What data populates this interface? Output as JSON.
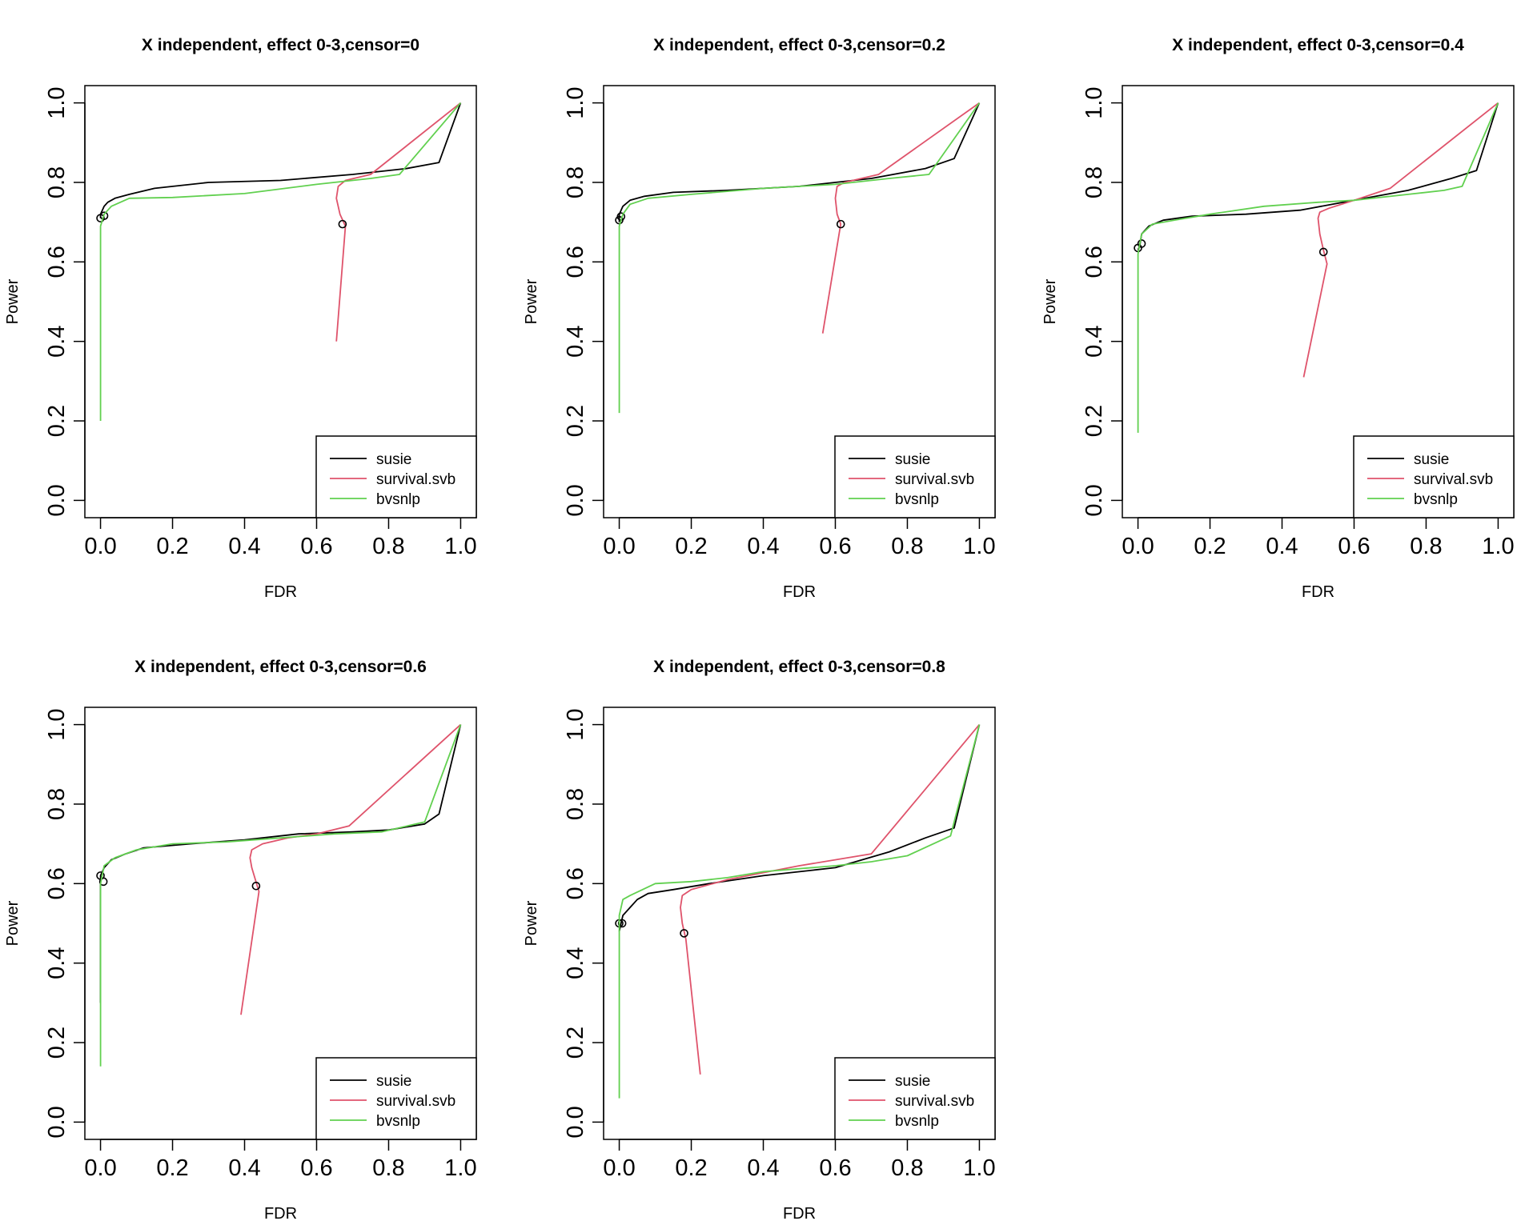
{
  "chart_data": [
    {
      "type": "line",
      "title": "X independent, effect 0-3,censor=0",
      "xlabel": "FDR",
      "ylabel": "Power",
      "xlim": [
        0,
        1
      ],
      "ylim": [
        0,
        1
      ],
      "xticks": [
        "0.0",
        "0.2",
        "0.4",
        "0.6",
        "0.8",
        "1.0"
      ],
      "yticks": [
        "0.0",
        "0.2",
        "0.4",
        "0.6",
        "0.8",
        "1.0"
      ],
      "legend": {
        "position": "bottom-right",
        "entries": [
          "susie",
          "survival.svb",
          "bvsnlp"
        ]
      },
      "series": [
        {
          "name": "susie",
          "color": "#000000",
          "points": [
            [
              0.0,
              0.71
            ],
            [
              0.0,
              0.72
            ],
            [
              0.01,
              0.74
            ],
            [
              0.02,
              0.75
            ],
            [
              0.04,
              0.76
            ],
            [
              0.08,
              0.77
            ],
            [
              0.15,
              0.785
            ],
            [
              0.3,
              0.8
            ],
            [
              0.5,
              0.805
            ],
            [
              0.7,
              0.82
            ],
            [
              0.85,
              0.835
            ],
            [
              0.94,
              0.85
            ],
            [
              1.0,
              1.0
            ]
          ],
          "markers": [
            [
              0.0,
              0.71
            ],
            [
              0.01,
              0.716
            ]
          ]
        },
        {
          "name": "survival.svb",
          "color": "#DF536B",
          "points": [
            [
              0.655,
              0.4
            ],
            [
              0.68,
              0.69
            ],
            [
              0.665,
              0.72
            ],
            [
              0.655,
              0.76
            ],
            [
              0.66,
              0.79
            ],
            [
              0.68,
              0.805
            ],
            [
              0.75,
              0.82
            ],
            [
              1.0,
              1.0
            ]
          ],
          "markers": [
            [
              0.672,
              0.695
            ]
          ]
        },
        {
          "name": "bvsnlp",
          "color": "#61D04F",
          "points": [
            [
              0.0,
              0.2
            ],
            [
              0.0,
              0.43
            ],
            [
              0.0,
              0.69
            ],
            [
              0.01,
              0.72
            ],
            [
              0.03,
              0.74
            ],
            [
              0.08,
              0.76
            ],
            [
              0.2,
              0.762
            ],
            [
              0.4,
              0.772
            ],
            [
              0.6,
              0.795
            ],
            [
              0.75,
              0.81
            ],
            [
              0.83,
              0.82
            ],
            [
              1.0,
              1.0
            ]
          ],
          "markers": []
        }
      ]
    },
    {
      "type": "line",
      "title": "X independent, effect 0-3,censor=0.2",
      "xlabel": "FDR",
      "ylabel": "Power",
      "xlim": [
        0,
        1
      ],
      "ylim": [
        0,
        1
      ],
      "xticks": [
        "0.0",
        "0.2",
        "0.4",
        "0.6",
        "0.8",
        "1.0"
      ],
      "yticks": [
        "0.0",
        "0.2",
        "0.4",
        "0.6",
        "0.8",
        "1.0"
      ],
      "legend": {
        "position": "bottom-right",
        "entries": [
          "susie",
          "survival.svb",
          "bvsnlp"
        ]
      },
      "series": [
        {
          "name": "susie",
          "color": "#000000",
          "points": [
            [
              0.0,
              0.7
            ],
            [
              0.0,
              0.72
            ],
            [
              0.01,
              0.74
            ],
            [
              0.03,
              0.755
            ],
            [
              0.07,
              0.765
            ],
            [
              0.15,
              0.775
            ],
            [
              0.3,
              0.78
            ],
            [
              0.5,
              0.79
            ],
            [
              0.7,
              0.81
            ],
            [
              0.85,
              0.835
            ],
            [
              0.93,
              0.86
            ],
            [
              1.0,
              1.0
            ]
          ],
          "markers": [
            [
              0.0,
              0.705
            ],
            [
              0.005,
              0.714
            ]
          ]
        },
        {
          "name": "survival.svb",
          "color": "#DF536B",
          "points": [
            [
              0.565,
              0.42
            ],
            [
              0.615,
              0.695
            ],
            [
              0.605,
              0.72
            ],
            [
              0.6,
              0.76
            ],
            [
              0.605,
              0.79
            ],
            [
              0.625,
              0.8
            ],
            [
              0.72,
              0.82
            ],
            [
              1.0,
              1.0
            ]
          ],
          "markers": [
            [
              0.615,
              0.695
            ]
          ]
        },
        {
          "name": "bvsnlp",
          "color": "#61D04F",
          "points": [
            [
              0.0,
              0.22
            ],
            [
              0.0,
              0.44
            ],
            [
              0.0,
              0.69
            ],
            [
              0.01,
              0.72
            ],
            [
              0.03,
              0.745
            ],
            [
              0.08,
              0.76
            ],
            [
              0.2,
              0.77
            ],
            [
              0.4,
              0.785
            ],
            [
              0.6,
              0.795
            ],
            [
              0.75,
              0.81
            ],
            [
              0.86,
              0.82
            ],
            [
              1.0,
              1.0
            ]
          ],
          "markers": []
        }
      ]
    },
    {
      "type": "line",
      "title": "X independent, effect 0-3,censor=0.4",
      "xlabel": "FDR",
      "ylabel": "Power",
      "xlim": [
        0,
        1
      ],
      "ylim": [
        0,
        1
      ],
      "xticks": [
        "0.0",
        "0.2",
        "0.4",
        "0.6",
        "0.8",
        "1.0"
      ],
      "yticks": [
        "0.0",
        "0.2",
        "0.4",
        "0.6",
        "0.8",
        "1.0"
      ],
      "legend": {
        "position": "bottom-right",
        "entries": [
          "susie",
          "survival.svb",
          "bvsnlp"
        ]
      },
      "series": [
        {
          "name": "susie",
          "color": "#000000",
          "points": [
            [
              0.0,
              0.63
            ],
            [
              0.005,
              0.64
            ],
            [
              0.01,
              0.67
            ],
            [
              0.03,
              0.69
            ],
            [
              0.07,
              0.705
            ],
            [
              0.15,
              0.715
            ],
            [
              0.3,
              0.72
            ],
            [
              0.45,
              0.73
            ],
            [
              0.6,
              0.755
            ],
            [
              0.75,
              0.78
            ],
            [
              0.87,
              0.81
            ],
            [
              0.94,
              0.83
            ],
            [
              1.0,
              1.0
            ]
          ],
          "markers": [
            [
              0.0,
              0.635
            ],
            [
              0.01,
              0.646
            ]
          ]
        },
        {
          "name": "survival.svb",
          "color": "#DF536B",
          "points": [
            [
              0.46,
              0.31
            ],
            [
              0.525,
              0.595
            ],
            [
              0.515,
              0.63
            ],
            [
              0.505,
              0.67
            ],
            [
              0.5,
              0.71
            ],
            [
              0.505,
              0.725
            ],
            [
              0.53,
              0.735
            ],
            [
              0.6,
              0.755
            ],
            [
              0.7,
              0.785
            ],
            [
              1.0,
              1.0
            ]
          ],
          "markers": [
            [
              0.515,
              0.625
            ]
          ]
        },
        {
          "name": "bvsnlp",
          "color": "#61D04F",
          "points": [
            [
              0.0,
              0.17
            ],
            [
              0.0,
              0.35
            ],
            [
              0.0,
              0.62
            ],
            [
              0.01,
              0.67
            ],
            [
              0.04,
              0.695
            ],
            [
              0.1,
              0.705
            ],
            [
              0.2,
              0.72
            ],
            [
              0.35,
              0.74
            ],
            [
              0.5,
              0.75
            ],
            [
              0.6,
              0.755
            ],
            [
              0.75,
              0.77
            ],
            [
              0.85,
              0.78
            ],
            [
              0.9,
              0.79
            ],
            [
              1.0,
              1.0
            ]
          ],
          "markers": []
        }
      ]
    },
    {
      "type": "line",
      "title": "X independent, effect 0-3,censor=0.6",
      "xlabel": "FDR",
      "ylabel": "Power",
      "xlim": [
        0,
        1
      ],
      "ylim": [
        0,
        1
      ],
      "xticks": [
        "0.0",
        "0.2",
        "0.4",
        "0.6",
        "0.8",
        "1.0"
      ],
      "yticks": [
        "0.0",
        "0.2",
        "0.4",
        "0.6",
        "0.8",
        "1.0"
      ],
      "legend": {
        "position": "bottom-right",
        "entries": [
          "susie",
          "survival.svb",
          "bvsnlp"
        ]
      },
      "series": [
        {
          "name": "susie",
          "color": "#000000",
          "points": [
            [
              0.0,
              0.3
            ],
            [
              0.0,
              0.62
            ],
            [
              0.01,
              0.64
            ],
            [
              0.03,
              0.66
            ],
            [
              0.07,
              0.675
            ],
            [
              0.12,
              0.69
            ],
            [
              0.25,
              0.7
            ],
            [
              0.4,
              0.71
            ],
            [
              0.55,
              0.725
            ],
            [
              0.7,
              0.73
            ],
            [
              0.8,
              0.735
            ],
            [
              0.9,
              0.75
            ],
            [
              0.94,
              0.775
            ],
            [
              1.0,
              1.0
            ]
          ],
          "markers": [
            [
              0.0,
              0.62
            ],
            [
              0.008,
              0.605
            ]
          ]
        },
        {
          "name": "survival.svb",
          "color": "#DF536B",
          "points": [
            [
              0.39,
              0.27
            ],
            [
              0.44,
              0.58
            ],
            [
              0.43,
              0.61
            ],
            [
              0.42,
              0.64
            ],
            [
              0.415,
              0.665
            ],
            [
              0.42,
              0.685
            ],
            [
              0.45,
              0.7
            ],
            [
              0.52,
              0.715
            ],
            [
              0.6,
              0.725
            ],
            [
              0.69,
              0.745
            ],
            [
              1.0,
              1.0
            ]
          ],
          "markers": [
            [
              0.432,
              0.594
            ]
          ]
        },
        {
          "name": "bvsnlp",
          "color": "#61D04F",
          "points": [
            [
              0.0,
              0.14
            ],
            [
              0.0,
              0.35
            ],
            [
              0.0,
              0.6
            ],
            [
              0.01,
              0.645
            ],
            [
              0.04,
              0.665
            ],
            [
              0.1,
              0.685
            ],
            [
              0.2,
              0.7
            ],
            [
              0.35,
              0.705
            ],
            [
              0.5,
              0.715
            ],
            [
              0.65,
              0.725
            ],
            [
              0.78,
              0.73
            ],
            [
              0.9,
              0.755
            ],
            [
              1.0,
              1.0
            ]
          ],
          "markers": []
        }
      ]
    },
    {
      "type": "line",
      "title": "X independent, effect 0-3,censor=0.8",
      "xlabel": "FDR",
      "ylabel": "Power",
      "xlim": [
        0,
        1
      ],
      "ylim": [
        0,
        1
      ],
      "xticks": [
        "0.0",
        "0.2",
        "0.4",
        "0.6",
        "0.8",
        "1.0"
      ],
      "yticks": [
        "0.0",
        "0.2",
        "0.4",
        "0.6",
        "0.8",
        "1.0"
      ],
      "legend": {
        "position": "bottom-right",
        "entries": [
          "susie",
          "survival.svb",
          "bvsnlp"
        ]
      },
      "series": [
        {
          "name": "susie",
          "color": "#000000",
          "points": [
            [
              0.0,
              0.48
            ],
            [
              0.005,
              0.5
            ],
            [
              0.01,
              0.52
            ],
            [
              0.03,
              0.54
            ],
            [
              0.05,
              0.56
            ],
            [
              0.08,
              0.575
            ],
            [
              0.15,
              0.585
            ],
            [
              0.25,
              0.6
            ],
            [
              0.4,
              0.62
            ],
            [
              0.6,
              0.64
            ],
            [
              0.75,
              0.68
            ],
            [
              0.85,
              0.715
            ],
            [
              0.93,
              0.74
            ],
            [
              1.0,
              1.0
            ]
          ],
          "markers": [
            [
              0.0,
              0.5
            ],
            [
              0.008,
              0.5
            ]
          ]
        },
        {
          "name": "survival.svb",
          "color": "#DF536B",
          "points": [
            [
              0.225,
              0.12
            ],
            [
              0.185,
              0.46
            ],
            [
              0.175,
              0.5
            ],
            [
              0.17,
              0.54
            ],
            [
              0.175,
              0.57
            ],
            [
              0.2,
              0.585
            ],
            [
              0.3,
              0.61
            ],
            [
              0.5,
              0.645
            ],
            [
              0.7,
              0.675
            ],
            [
              1.0,
              1.0
            ]
          ],
          "markers": [
            [
              0.18,
              0.475
            ]
          ]
        },
        {
          "name": "bvsnlp",
          "color": "#61D04F",
          "points": [
            [
              0.0,
              0.06
            ],
            [
              0.0,
              0.3
            ],
            [
              0.0,
              0.52
            ],
            [
              0.01,
              0.56
            ],
            [
              0.03,
              0.57
            ],
            [
              0.1,
              0.6
            ],
            [
              0.2,
              0.605
            ],
            [
              0.3,
              0.615
            ],
            [
              0.4,
              0.63
            ],
            [
              0.6,
              0.645
            ],
            [
              0.7,
              0.655
            ],
            [
              0.8,
              0.67
            ],
            [
              0.92,
              0.72
            ],
            [
              1.0,
              1.0
            ]
          ],
          "markers": []
        }
      ]
    }
  ]
}
